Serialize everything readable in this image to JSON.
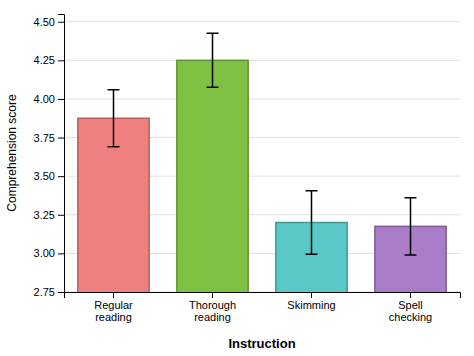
{
  "chart_data": {
    "type": "bar",
    "categories": [
      "Regular\nreading",
      "Thorough\nreading",
      "Skimming",
      "Spell\nchecking"
    ],
    "values": [
      3.875,
      4.25,
      3.2,
      3.175
    ],
    "errors": [
      0.185,
      0.175,
      0.205,
      0.185
    ],
    "colors": [
      "#F08080",
      "#7DC243",
      "#5BC8C8",
      "#A97DC8"
    ],
    "xlabel": "Instruction",
    "ylabel": "Comprehension score",
    "ylim": [
      2.75,
      4.55
    ],
    "yticks": [
      2.75,
      {
        "value": 3.0,
        "label": "3.00"
      },
      3.25,
      {
        "value": 3.5,
        "label": "3.50"
      },
      3.75,
      {
        "value": 4.0,
        "label": "4.00"
      },
      4.25,
      {
        "value": 4.5,
        "label": "4.50"
      }
    ],
    "grid": true
  }
}
